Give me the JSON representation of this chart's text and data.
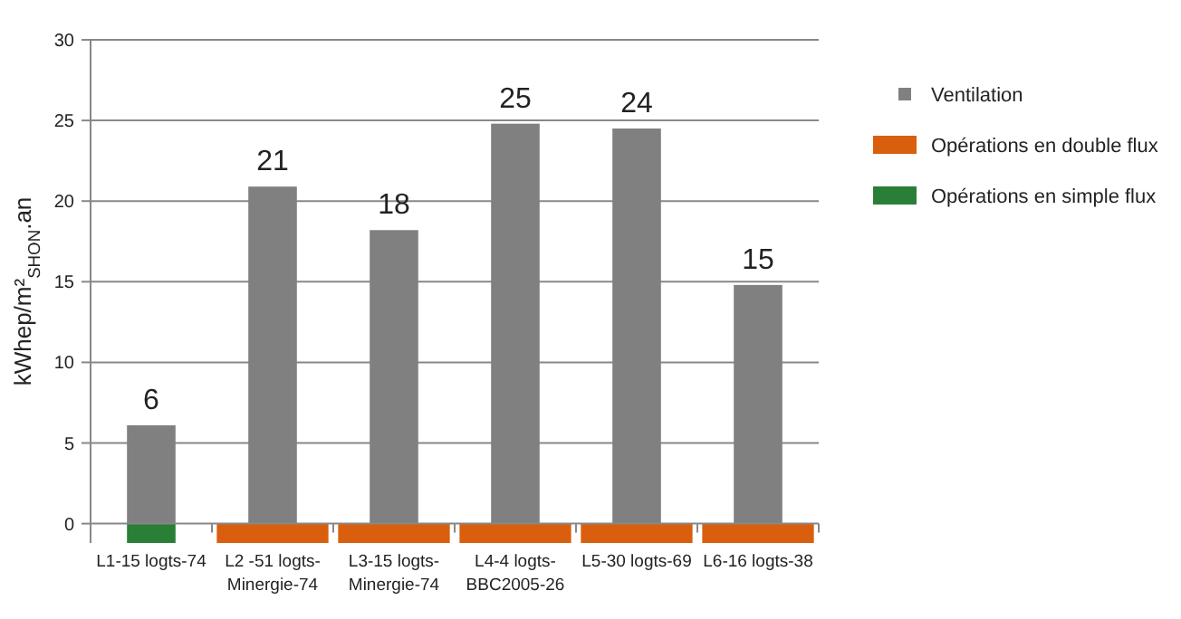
{
  "chart_data": {
    "type": "bar",
    "ylabel": "kWhep/m²$_{SHON}$.an",
    "categories": [
      "L1-15 logts-74",
      "L2 -51 logts-Minergie-74",
      "L3-15 logts-Minergie-74",
      "L4-4 logts-BBC2005-26",
      "L5-30 logts-69",
      "L6-16 logts-38"
    ],
    "series": [
      {
        "name": "Ventilation",
        "color": "#808080",
        "values": [
          6.1,
          20.9,
          18.2,
          24.8,
          24.5,
          14.8
        ],
        "value_labels": [
          "6",
          "21",
          "18",
          "25",
          "24",
          "15"
        ]
      },
      {
        "name": "Opérations en double flux",
        "color": "#d95f0e",
        "values": [
          null,
          -1.2,
          -1.2,
          -1.2,
          -1.2,
          -1.2
        ]
      },
      {
        "name": "Opérations en simple flux",
        "color": "#2a7f36",
        "values": [
          -1.2,
          null,
          null,
          null,
          null,
          null
        ]
      }
    ],
    "stacked": true,
    "ylim": [
      -1.2,
      30
    ],
    "yticks": [
      0,
      5,
      10,
      15,
      20,
      25,
      30
    ],
    "grid": "y",
    "legend": "right"
  }
}
